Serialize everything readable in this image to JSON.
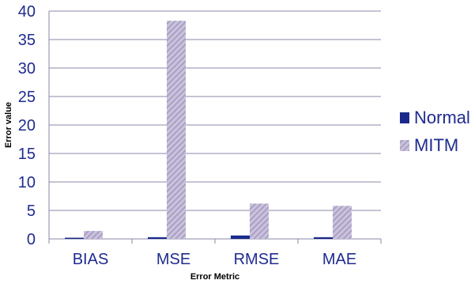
{
  "chart_data": {
    "type": "bar",
    "title": "",
    "xlabel": "Error Metric",
    "ylabel": "Error value",
    "categories": [
      "BIAS",
      "MSE",
      "RMSE",
      "MAE"
    ],
    "series": [
      {
        "name": "Normal",
        "values": [
          0.1,
          0.3,
          0.6,
          0.3
        ],
        "color": "#1a2a8c",
        "pattern": "solid"
      },
      {
        "name": "MITM",
        "values": [
          1.4,
          38.3,
          6.2,
          5.8
        ],
        "color": "#b0a6c8",
        "pattern": "diagonal-hatch"
      }
    ],
    "y_ticks": [
      0,
      5,
      10,
      15,
      20,
      25,
      30,
      35,
      40
    ],
    "ylim": [
      0,
      40
    ],
    "grid": true,
    "legend_position": "right"
  }
}
